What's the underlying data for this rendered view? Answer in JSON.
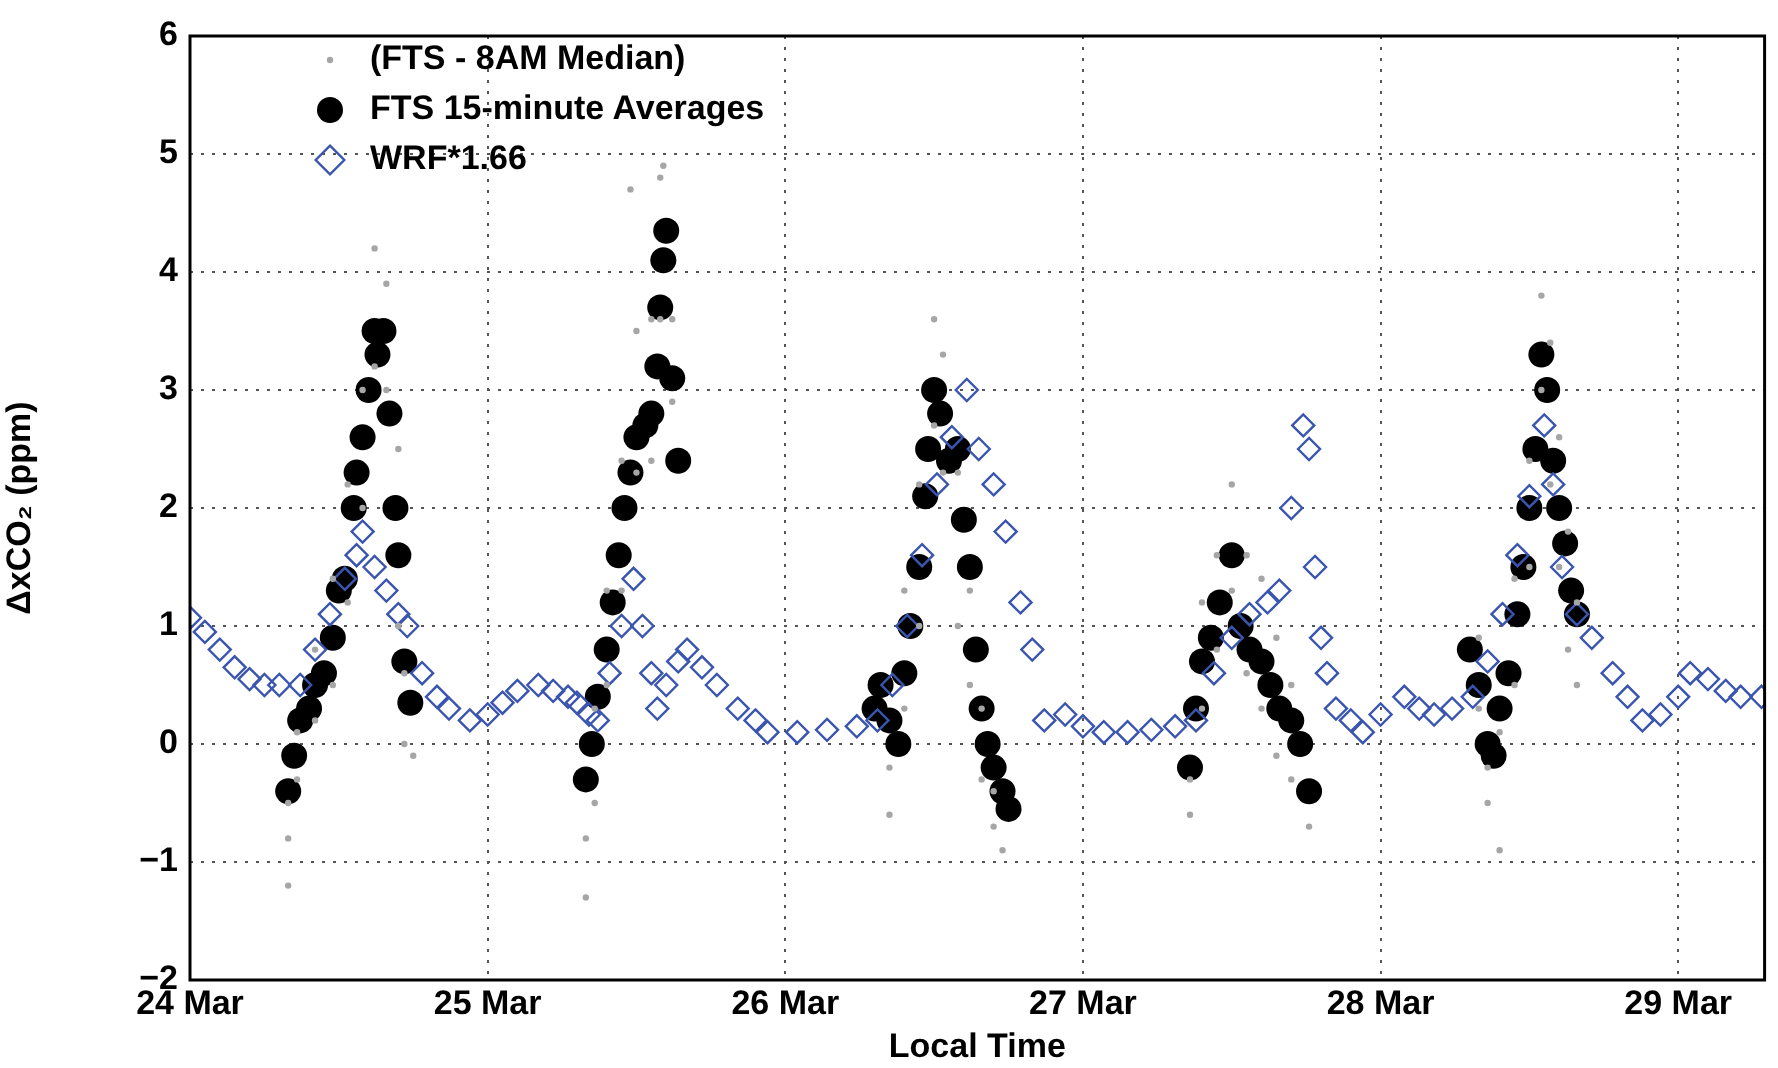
{
  "chart_data": {
    "type": "scatter",
    "xlabel": "Local Time",
    "ylabel": "ΔxCO₂ (ppm)",
    "xlim": [
      "--03-24",
      "--03-29T06:58"
    ],
    "ylim": [
      -2,
      6
    ],
    "xticks": [
      {
        "value": "--03-24",
        "label": "24 Mar"
      },
      {
        "value": "--03-25",
        "label": "25 Mar"
      },
      {
        "value": "--03-26",
        "label": "26 Mar"
      },
      {
        "value": "--03-27",
        "label": "27 Mar"
      },
      {
        "value": "--03-28",
        "label": "28 Mar"
      },
      {
        "value": "--03-29",
        "label": "29 Mar"
      }
    ],
    "yticks": [
      -2,
      -1,
      0,
      1,
      2,
      3,
      4,
      5,
      6
    ],
    "grid": true,
    "legend": "top left",
    "series": [
      {
        "name": "(FTS - 8AM Median)",
        "color": "#a6a6a6",
        "marker": "circle",
        "x": [
          "--03-24T07:55",
          "--03-24T07:55",
          "--03-24T07:55",
          "--03-24T08:38",
          "--03-24T08:38",
          "--03-24T10:05",
          "--03-24T10:05",
          "--03-24T11:31",
          "--03-24T11:31",
          "--03-24T12:43",
          "--03-24T12:43",
          "--03-24T13:55",
          "--03-24T13:55",
          "--03-24T14:53",
          "--03-24T14:53",
          "--03-24T15:50",
          "--03-24T15:50",
          "--03-24T16:48",
          "--03-24T16:48",
          "--03-24T17:17",
          "--03-24T17:17",
          "--03-24T18:00",
          "--03-25T07:55",
          "--03-25T07:55",
          "--03-25T08:38",
          "--03-25T08:38",
          "--03-25T09:36",
          "--03-25T09:36",
          "--03-25T10:48",
          "--03-25T10:48",
          "--03-25T11:31",
          "--03-25T12:00",
          "--03-25T12:00",
          "--03-25T13:12",
          "--03-25T13:12",
          "--03-25T13:55",
          "--03-25T13:55",
          "--03-25T14:10",
          "--03-25T14:53",
          "--03-25T14:53",
          "--03-26T08:24",
          "--03-26T08:24",
          "--03-26T09:36",
          "--03-26T09:36",
          "--03-26T10:48",
          "--03-26T10:48",
          "--03-26T12:00",
          "--03-26T12:00",
          "--03-26T12:43",
          "--03-26T12:43",
          "--03-26T13:55",
          "--03-26T13:55",
          "--03-26T14:53",
          "--03-26T14:53",
          "--03-26T15:50",
          "--03-26T15:50",
          "--03-26T16:48",
          "--03-26T16:48",
          "--03-26T17:31",
          "--03-27T08:38",
          "--03-27T08:38",
          "--03-27T09:36",
          "--03-27T09:36",
          "--03-27T10:48",
          "--03-27T10:48",
          "--03-27T12:00",
          "--03-27T12:00",
          "--03-27T13:12",
          "--03-27T13:12",
          "--03-27T14:24",
          "--03-27T14:24",
          "--03-27T15:36",
          "--03-27T15:36",
          "--03-27T16:48",
          "--03-27T16:48",
          "--03-27T18:14",
          "--03-28T07:55",
          "--03-28T07:55",
          "--03-28T08:38",
          "--03-28T08:38",
          "--03-28T09:36",
          "--03-28T09:36",
          "--03-28T10:48",
          "--03-28T10:48",
          "--03-28T12:00",
          "--03-28T12:00",
          "--03-28T12:58",
          "--03-28T12:58",
          "--03-28T13:41",
          "--03-28T13:41",
          "--03-28T14:24",
          "--03-28T14:24",
          "--03-28T15:07",
          "--03-28T15:07",
          "--03-28T15:50",
          "--03-28T15:50"
        ],
        "values": [
          -1.2,
          -0.8,
          -0.5,
          -0.3,
          0.1,
          0.2,
          0.8,
          0.5,
          1.4,
          1.2,
          2.2,
          2.0,
          3.0,
          3.2,
          4.2,
          3.0,
          3.9,
          1.0,
          2.5,
          0.0,
          0.6,
          -0.1,
          -1.3,
          -0.8,
          -0.5,
          0.3,
          0.5,
          1.3,
          1.3,
          2.4,
          4.7,
          2.3,
          3.5,
          2.4,
          3.6,
          3.6,
          4.8,
          4.9,
          2.9,
          3.6,
          -0.6,
          -0.2,
          0.3,
          1.3,
          1.0,
          2.2,
          2.7,
          3.6,
          2.3,
          3.3,
          1.0,
          2.3,
          0.5,
          1.3,
          -0.3,
          0.3,
          -0.7,
          -0.4,
          -0.9,
          -0.6,
          -0.3,
          0.3,
          1.2,
          0.8,
          1.6,
          1.3,
          2.2,
          0.6,
          1.6,
          0.3,
          1.4,
          -0.1,
          0.9,
          -0.3,
          0.5,
          -0.7,
          0.3,
          0.9,
          -0.5,
          -0.2,
          -0.9,
          0.1,
          0.5,
          1.4,
          1.5,
          2.4,
          3.0,
          3.8,
          2.2,
          3.4,
          1.5,
          2.6,
          0.8,
          1.8,
          0.5,
          1.2
        ]
      },
      {
        "name": "FTS 15-minute Averages",
        "color": "#000000",
        "marker": "circle",
        "x": [
          "--03-24T07:55",
          "--03-24T08:24",
          "--03-24T08:53",
          "--03-24T09:36",
          "--03-24T10:05",
          "--03-24T10:48",
          "--03-24T11:31",
          "--03-24T12:00",
          "--03-24T12:29",
          "--03-24T13:12",
          "--03-24T13:26",
          "--03-24T13:55",
          "--03-24T14:24",
          "--03-24T14:53",
          "--03-24T15:07",
          "--03-24T15:36",
          "--03-24T16:05",
          "--03-24T16:34",
          "--03-24T16:48",
          "--03-24T17:17",
          "--03-24T17:46",
          "--03-25T07:55",
          "--03-25T08:24",
          "--03-25T08:53",
          "--03-25T09:36",
          "--03-25T10:05",
          "--03-25T10:34",
          "--03-25T11:02",
          "--03-25T11:31",
          "--03-25T12:00",
          "--03-25T12:43",
          "--03-25T13:12",
          "--03-25T13:41",
          "--03-25T13:55",
          "--03-25T14:10",
          "--03-25T14:24",
          "--03-25T14:53",
          "--03-25T15:22",
          "--03-26T07:12",
          "--03-26T07:41",
          "--03-26T08:24",
          "--03-26T09:07",
          "--03-26T09:36",
          "--03-26T10:05",
          "--03-26T10:48",
          "--03-26T11:17",
          "--03-26T11:31",
          "--03-26T12:00",
          "--03-26T12:29",
          "--03-26T13:12",
          "--03-26T13:55",
          "--03-26T14:24",
          "--03-26T14:53",
          "--03-26T15:22",
          "--03-26T15:50",
          "--03-26T16:19",
          "--03-26T16:48",
          "--03-26T17:31",
          "--03-26T18:00",
          "--03-27T08:38",
          "--03-27T09:07",
          "--03-27T09:36",
          "--03-27T10:19",
          "--03-27T11:02",
          "--03-27T12:00",
          "--03-27T12:43",
          "--03-27T13:26",
          "--03-27T14:24",
          "--03-27T15:07",
          "--03-27T15:50",
          "--03-27T16:48",
          "--03-27T17:31",
          "--03-27T18:14",
          "--03-28T07:12",
          "--03-28T07:55",
          "--03-28T08:38",
          "--03-28T09:07",
          "--03-28T09:36",
          "--03-28T10:19",
          "--03-28T11:02",
          "--03-28T11:31",
          "--03-28T12:00",
          "--03-28T12:29",
          "--03-28T12:58",
          "--03-28T13:26",
          "--03-28T13:55",
          "--03-28T14:24",
          "--03-28T14:53",
          "--03-28T15:22",
          "--03-28T15:50"
        ],
        "values": [
          -0.4,
          -0.1,
          0.2,
          0.3,
          0.5,
          0.6,
          0.9,
          1.3,
          1.4,
          2.0,
          2.3,
          2.6,
          3.0,
          3.5,
          3.3,
          3.5,
          2.8,
          2.0,
          1.6,
          0.7,
          0.35,
          -0.3,
          0.0,
          0.4,
          0.8,
          1.2,
          1.6,
          2.0,
          2.3,
          2.6,
          2.7,
          2.8,
          3.2,
          3.7,
          4.1,
          4.35,
          3.1,
          2.4,
          0.3,
          0.5,
          0.2,
          0.0,
          0.6,
          1.0,
          1.5,
          2.1,
          2.5,
          3.0,
          2.8,
          2.4,
          2.5,
          1.9,
          1.5,
          0.8,
          0.3,
          0.0,
          -0.2,
          -0.4,
          -0.55,
          -0.2,
          0.3,
          0.7,
          0.9,
          1.2,
          1.6,
          1.0,
          0.8,
          0.7,
          0.5,
          0.3,
          0.2,
          0.0,
          -0.4,
          0.8,
          0.5,
          0.0,
          -0.1,
          0.3,
          0.6,
          1.1,
          1.5,
          2.0,
          2.5,
          3.3,
          3.0,
          2.4,
          2.0,
          1.7,
          1.3,
          1.1
        ]
      },
      {
        "name": "WRF*1.66",
        "color": "#3a55b0",
        "marker": "diamond",
        "x": [
          "--03-24T00:00",
          "--03-24T01:12",
          "--03-24T02:24",
          "--03-24T03:36",
          "--03-24T04:48",
          "--03-24T06:00",
          "--03-24T07:12",
          "--03-24T08:53",
          "--03-24T10:05",
          "--03-24T11:17",
          "--03-24T12:29",
          "--03-24T13:26",
          "--03-24T13:55",
          "--03-24T14:53",
          "--03-24T15:50",
          "--03-24T16:48",
          "--03-24T17:31",
          "--03-24T18:43",
          "--03-24T19:55",
          "--03-24T20:53",
          "--03-24T22:34",
          "--03-25T00:00",
          "--03-25T01:12",
          "--03-25T02:24",
          "--03-25T04:05",
          "--03-25T05:17",
          "--03-25T06:29",
          "--03-25T07:12",
          "--03-25T08:10",
          "--03-25T08:53",
          "--03-25T09:50",
          "--03-25T10:48",
          "--03-25T11:46",
          "--03-25T12:29",
          "--03-25T13:12",
          "--03-25T13:41",
          "--03-25T14:24",
          "--03-25T15:22",
          "--03-25T16:05",
          "--03-25T17:17",
          "--03-25T18:29",
          "--03-25T20:10",
          "--03-25T21:36",
          "--03-25T22:34",
          "--03-26T00:58",
          "--03-26T03:22",
          "--03-26T05:46",
          "--03-26T07:26",
          "--03-26T08:38",
          "--03-26T09:50",
          "--03-26T11:02",
          "--03-26T12:14",
          "--03-26T13:26",
          "--03-26T14:38",
          "--03-26T15:36",
          "--03-26T16:48",
          "--03-26T17:46",
          "--03-26T18:58",
          "--03-26T19:55",
          "--03-26T20:53",
          "--03-26T22:34",
          "--03-27T00:00",
          "--03-27T01:41",
          "--03-27T03:36",
          "--03-27T05:31",
          "--03-27T07:26",
          "--03-27T09:07",
          "--03-27T10:34",
          "--03-27T12:00",
          "--03-27T13:26",
          "--03-27T14:53",
          "--03-27T15:50",
          "--03-27T16:48",
          "--03-27T17:46",
          "--03-27T18:14",
          "--03-27T18:43",
          "--03-27T19:12",
          "--03-27T19:41",
          "--03-27T20:24",
          "--03-27T21:36",
          "--03-27T22:34",
          "--03-28T00:00",
          "--03-28T01:55",
          "--03-28T03:07",
          "--03-28T04:19",
          "--03-28T05:46",
          "--03-28T07:26",
          "--03-28T08:38",
          "--03-28T09:50",
          "--03-28T11:02",
          "--03-28T12:00",
          "--03-28T13:12",
          "--03-28T13:55",
          "--03-28T14:38",
          "--03-28T15:50",
          "--03-28T17:02",
          "--03-28T18:43",
          "--03-28T19:55",
          "--03-28T21:07",
          "--03-28T22:34",
          "--03-29T00:00",
          "--03-29T00:58",
          "--03-29T02:24",
          "--03-29T03:50",
          "--03-29T05:02",
          "--03-29T06:43"
        ],
        "values": [
          1.07,
          0.95,
          0.8,
          0.65,
          0.55,
          0.5,
          0.5,
          0.5,
          0.8,
          1.1,
          1.4,
          1.6,
          1.8,
          1.5,
          1.3,
          1.1,
          1.0,
          0.6,
          0.4,
          0.3,
          0.2,
          0.25,
          0.35,
          0.45,
          0.5,
          0.45,
          0.4,
          0.35,
          0.25,
          0.2,
          0.6,
          1.0,
          1.4,
          1.0,
          0.6,
          0.3,
          0.5,
          0.7,
          0.8,
          0.65,
          0.5,
          0.3,
          0.2,
          0.1,
          0.1,
          0.12,
          0.15,
          0.2,
          0.5,
          1.0,
          1.6,
          2.2,
          2.6,
          3.0,
          2.5,
          2.2,
          1.8,
          1.2,
          0.8,
          0.2,
          0.25,
          0.15,
          0.1,
          0.1,
          0.12,
          0.15,
          0.2,
          0.6,
          0.9,
          1.1,
          1.2,
          1.3,
          2.0,
          2.7,
          2.5,
          1.5,
          0.9,
          0.6,
          0.3,
          0.2,
          0.1,
          0.25,
          0.4,
          0.3,
          0.25,
          0.3,
          0.4,
          0.7,
          1.1,
          1.6,
          2.1,
          2.7,
          2.2,
          1.5,
          1.1,
          0.9,
          0.6,
          0.4,
          0.2,
          0.25,
          0.4,
          0.6,
          0.55,
          0.45,
          0.4,
          0.4
        ]
      }
    ]
  }
}
